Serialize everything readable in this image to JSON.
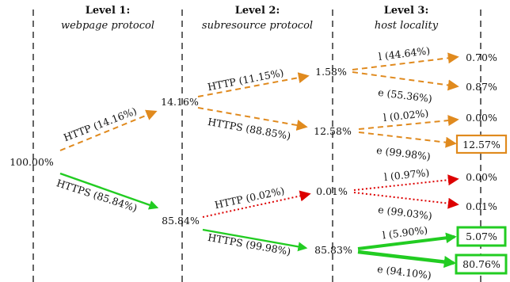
{
  "headers": [
    {
      "title": "Level 1:",
      "subtitle": "webpage protocol"
    },
    {
      "title": "Level 2:",
      "subtitle": "subresource protocol"
    },
    {
      "title": "Level 3:",
      "subtitle": "host locality"
    }
  ],
  "colors": {
    "http_branch": "#e08a1e",
    "https_branch": "#22cc22",
    "mixed_branch": "#dd0000",
    "level_divider": "#222222",
    "text": "#111111"
  },
  "nodes": {
    "root": "100.00%",
    "l1_http": "14.16%",
    "l1_https": "85.84%",
    "l2_http_http": "1.58%",
    "l2_http_https": "12.58%",
    "l2_https_http": "0.01%",
    "l2_https_https": "85.83%"
  },
  "edges": {
    "root_http": "HTTP (14.16%)",
    "root_https": "HTTPS (85.84%)",
    "http_http": "HTTP (11.15%)",
    "http_https": "HTTPS (88.85%)",
    "https_http": "HTTP (0.02%)",
    "https_https": "HTTPS (99.98%)",
    "hh_l": "l (44.64%)",
    "hh_e": "e (55.36%)",
    "hs_l": "l (0.02%)",
    "hs_e": "e (99.98%)",
    "sh_l": "l (0.97%)",
    "sh_e": "e (99.03%)",
    "ss_l": "l (5.90%)",
    "ss_e": "e (94.10%)"
  },
  "leaves": {
    "hh_l": "0.70%",
    "hh_e": "0.87%",
    "hs_l": "0.00%",
    "hs_e": "12.57%",
    "sh_l": "0.00%",
    "sh_e": "0.01%",
    "ss_l": "5.07%",
    "ss_e": "80.76%"
  }
}
